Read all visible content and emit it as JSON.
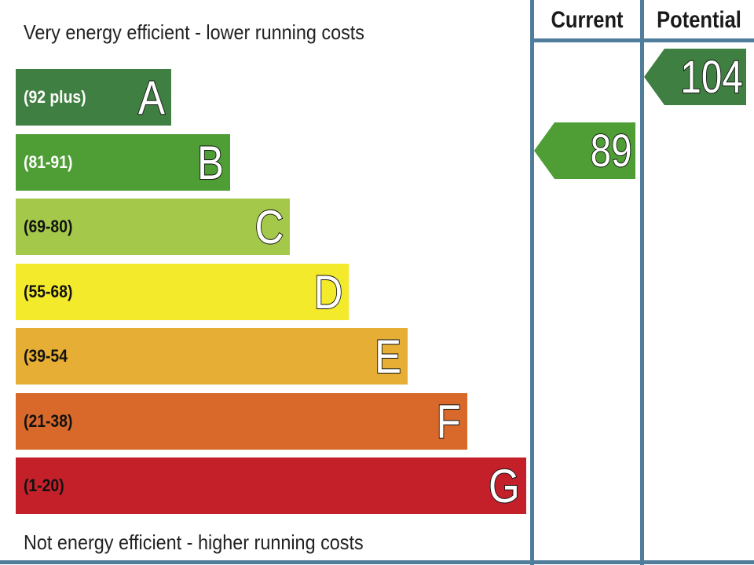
{
  "chart_data": {
    "type": "bar",
    "top_label": "Very energy efficient - lower running costs",
    "bottom_label": "Not energy efficient - higher running costs",
    "bands": [
      {
        "letter": "A",
        "range": "(92 plus)",
        "color": "#3f7f41",
        "range_text_color": "#ffffff"
      },
      {
        "letter": "B",
        "range": "(81-91)",
        "color": "#4e9d35",
        "range_text_color": "#ffffff"
      },
      {
        "letter": "C",
        "range": "(69-80)",
        "color": "#a4c84a",
        "range_text_color": "#111111"
      },
      {
        "letter": "D",
        "range": "(55-68)",
        "color": "#f4ea2c",
        "range_text_color": "#111111"
      },
      {
        "letter": "E",
        "range": "(39-54",
        "color": "#e6ae34",
        "range_text_color": "#111111"
      },
      {
        "letter": "F",
        "range": "(21-38)",
        "color": "#d9692b",
        "range_text_color": "#111111"
      },
      {
        "letter": "G",
        "range": "(1-20)",
        "color": "#c4202a",
        "range_text_color": "#111111"
      }
    ],
    "columns": [
      "Current",
      "Potential"
    ],
    "ratings": [
      {
        "column": "Current",
        "value": 89,
        "band": "B",
        "color": "#4e9d35"
      },
      {
        "column": "Potential",
        "value": 104,
        "band": "A",
        "color": "#3f7f41"
      }
    ]
  },
  "colors": {
    "frame": "#4f7d9b"
  }
}
